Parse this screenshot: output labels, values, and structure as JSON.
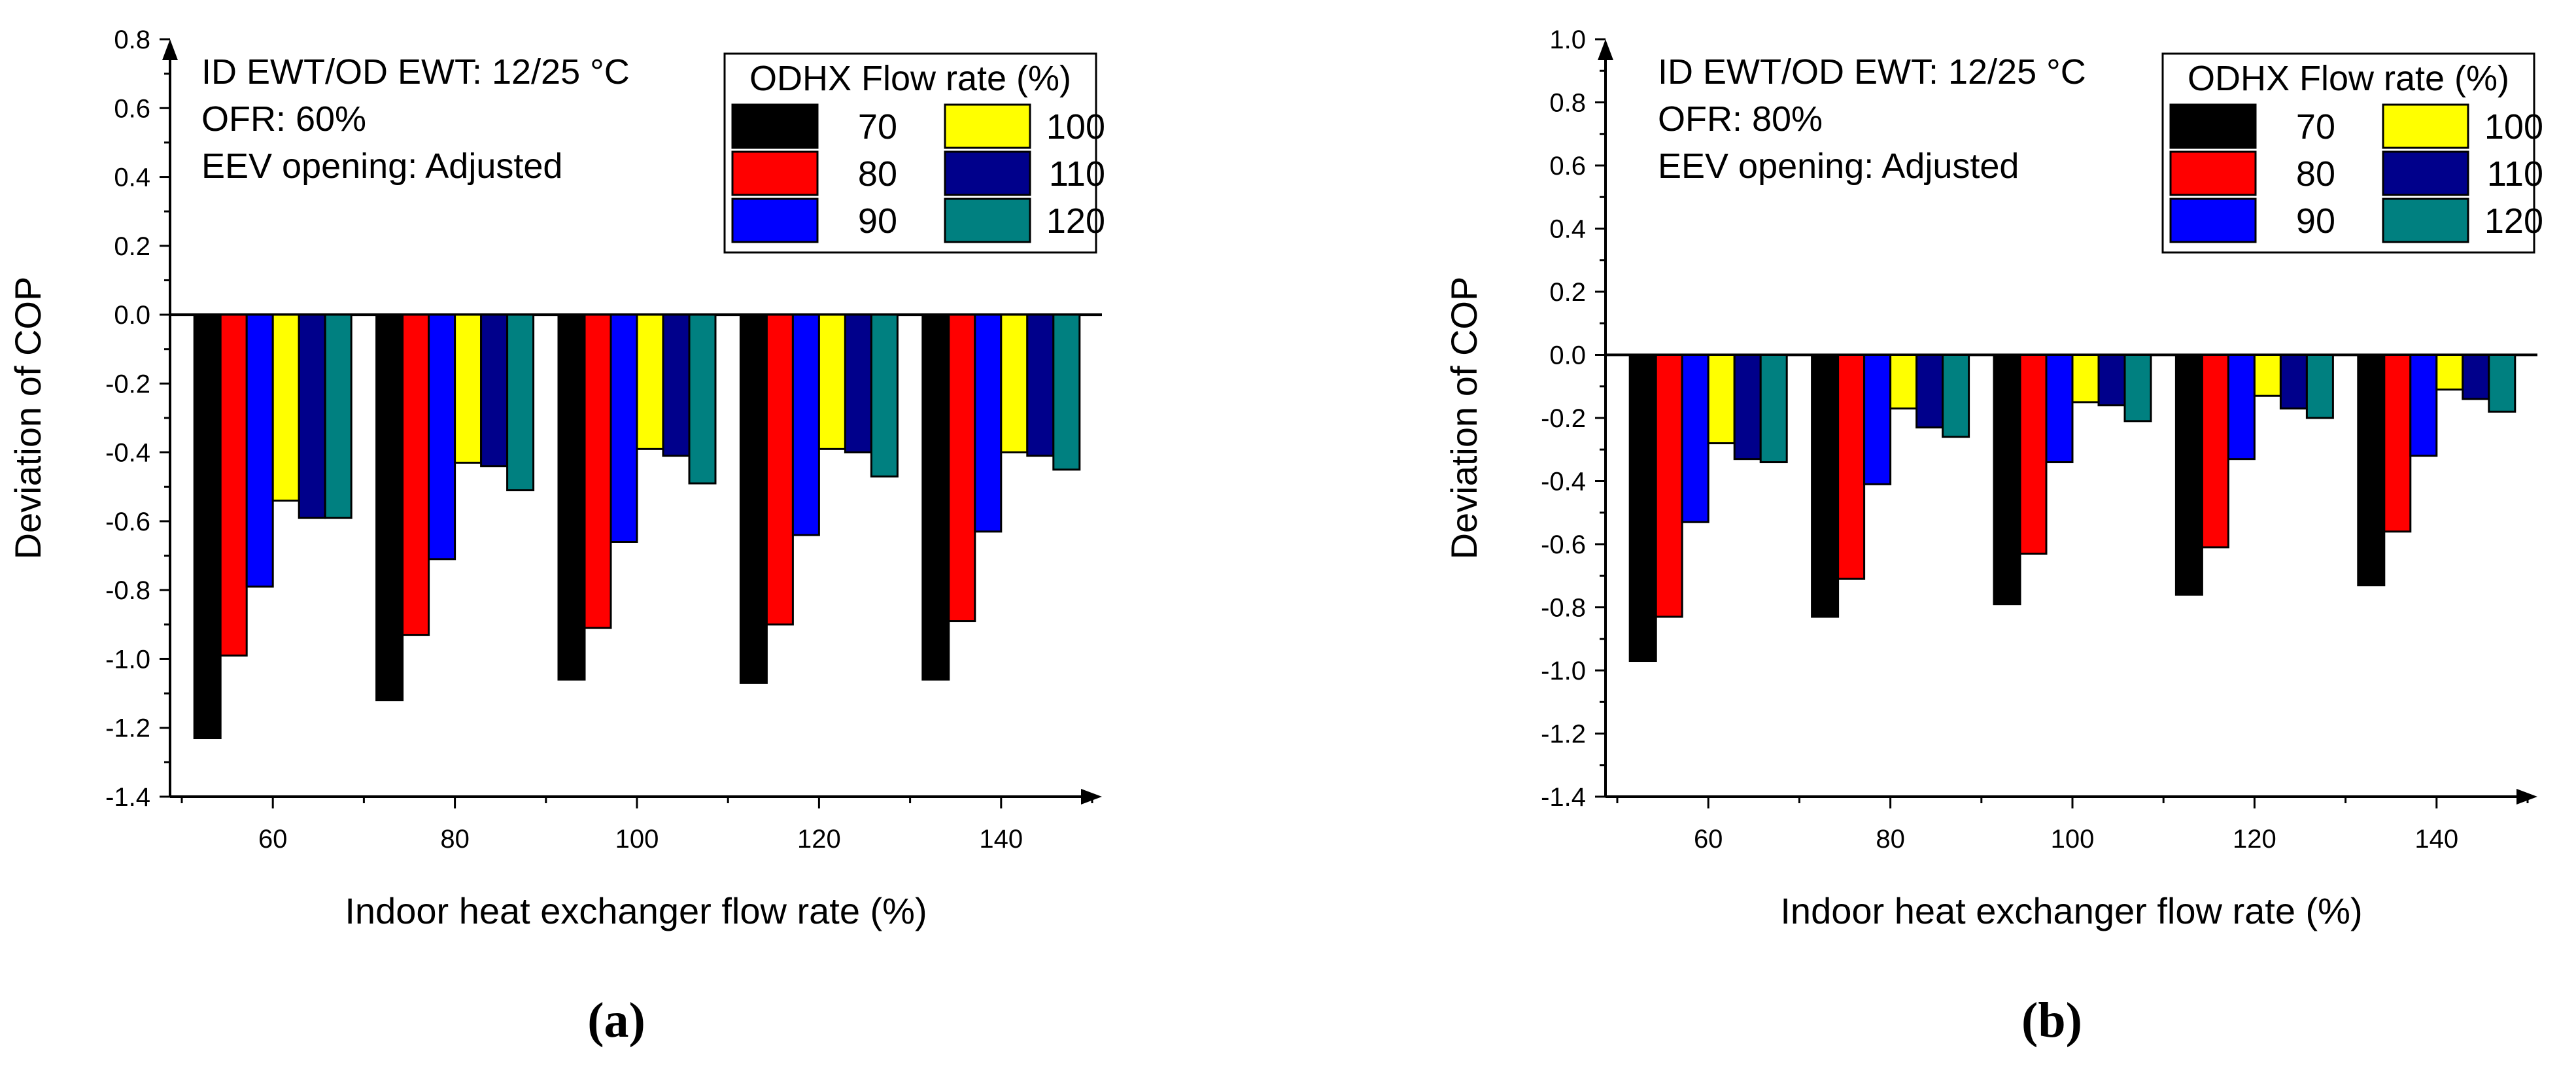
{
  "figure": {
    "panels": [
      "(a)",
      "(b)"
    ]
  },
  "colors": {
    "series": [
      "#000000",
      "#ff0000",
      "#0000ff",
      "#ffff00",
      "#00008b",
      "#008080"
    ],
    "axis": "#000000",
    "background": "#ffffff"
  },
  "chart_data": [
    {
      "type": "bar",
      "panel_label": "(a)",
      "title": "",
      "xlabel": "Indoor heat exchanger flow rate (%)",
      "ylabel": "Deviation of COP",
      "categories": [
        "60",
        "80",
        "100",
        "120",
        "140"
      ],
      "ylim": [
        -1.4,
        0.8
      ],
      "yticks": [
        "-1.4",
        "-1.2",
        "-1.0",
        "-0.8",
        "-0.6",
        "-0.4",
        "-0.2",
        "0.0",
        "0.2",
        "0.4",
        "0.6",
        "0.8"
      ],
      "annotations": [
        "ID EWT/OD EWT: 12/25 °C",
        "OFR: 60%",
        "EEV opening: Adjusted"
      ],
      "legend_title": "ODHX Flow rate (%)",
      "legend_position": "top-right",
      "series": [
        {
          "name": "70",
          "values": [
            -1.23,
            -1.12,
            -1.06,
            -1.07,
            -1.06
          ]
        },
        {
          "name": "80",
          "values": [
            -0.99,
            -0.93,
            -0.91,
            -0.9,
            -0.89
          ]
        },
        {
          "name": "90",
          "values": [
            -0.79,
            -0.71,
            -0.66,
            -0.64,
            -0.63
          ]
        },
        {
          "name": "100",
          "values": [
            -0.54,
            -0.43,
            -0.39,
            -0.39,
            -0.4
          ]
        },
        {
          "name": "110",
          "values": [
            -0.59,
            -0.44,
            -0.41,
            -0.4,
            -0.41
          ]
        },
        {
          "name": "120",
          "values": [
            -0.59,
            -0.51,
            -0.49,
            -0.47,
            -0.45
          ]
        }
      ]
    },
    {
      "type": "bar",
      "panel_label": "(b)",
      "title": "",
      "xlabel": "Indoor heat exchanger flow rate (%)",
      "ylabel": "Deviation of COP",
      "categories": [
        "60",
        "80",
        "100",
        "120",
        "140"
      ],
      "ylim": [
        -1.4,
        1.0
      ],
      "yticks": [
        "-1.4",
        "-1.2",
        "-1.0",
        "-0.8",
        "-0.6",
        "-0.4",
        "-0.2",
        "0.0",
        "0.2",
        "0.4",
        "0.6",
        "0.8",
        "1.0"
      ],
      "annotations": [
        "ID EWT/OD EWT: 12/25 °C",
        "OFR: 80%",
        "EEV opening: Adjusted"
      ],
      "legend_title": "ODHX Flow rate (%)",
      "legend_position": "top-right",
      "series": [
        {
          "name": "70",
          "values": [
            -0.97,
            -0.83,
            -0.79,
            -0.76,
            -0.73
          ]
        },
        {
          "name": "80",
          "values": [
            -0.83,
            -0.71,
            -0.63,
            -0.61,
            -0.56
          ]
        },
        {
          "name": "90",
          "values": [
            -0.53,
            -0.41,
            -0.34,
            -0.33,
            -0.32
          ]
        },
        {
          "name": "100",
          "values": [
            -0.28,
            -0.17,
            -0.15,
            -0.13,
            -0.11
          ]
        },
        {
          "name": "110",
          "values": [
            -0.33,
            -0.23,
            -0.16,
            -0.17,
            -0.14
          ]
        },
        {
          "name": "120",
          "values": [
            -0.34,
            -0.26,
            -0.21,
            -0.2,
            -0.18
          ]
        }
      ]
    }
  ]
}
